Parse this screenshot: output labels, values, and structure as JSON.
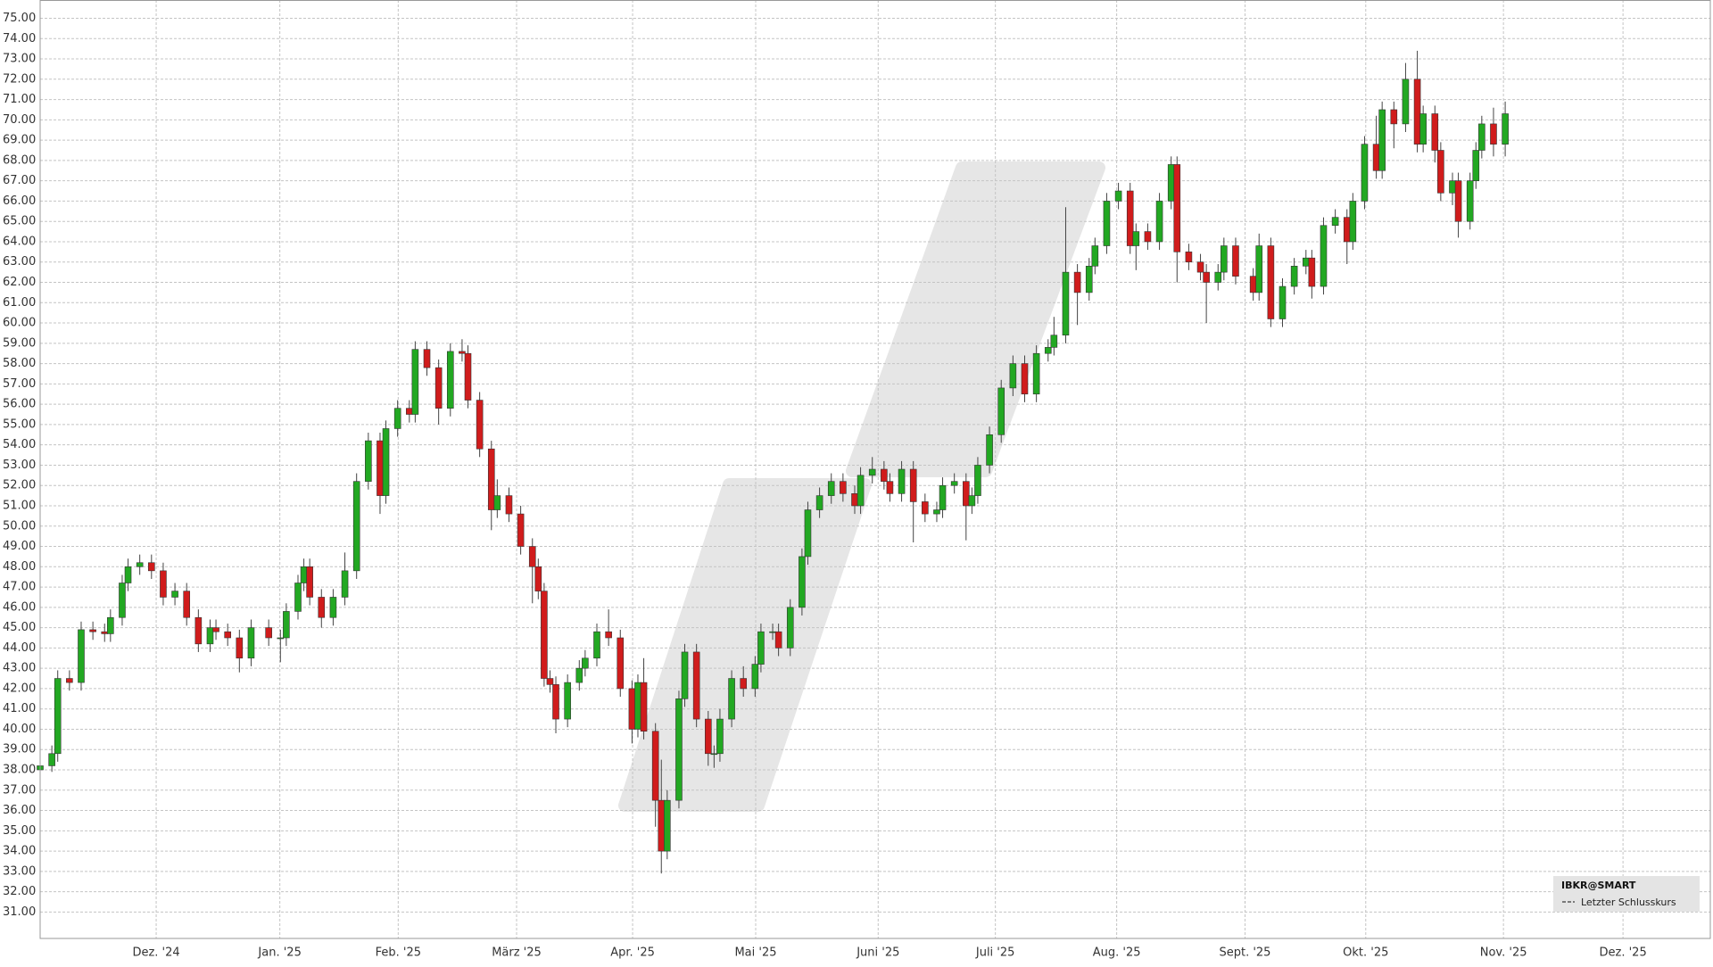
{
  "chart_data": {
    "type": "candlestick",
    "grid": true,
    "up_color": "#22a822",
    "down_color": "#d01c1c",
    "legend": {
      "title": "IBKR@SMART",
      "item": "Letzter Schlusskurs"
    },
    "xlim": [
      0,
      285
    ],
    "ylim": [
      29.7,
      75.9
    ],
    "xticks": [
      {
        "value": 19.8,
        "label": "Dez. '24"
      },
      {
        "value": 40.9,
        "label": "Jan. '25"
      },
      {
        "value": 61.1,
        "label": "Feb. '25"
      },
      {
        "value": 81.3,
        "label": "März '25"
      },
      {
        "value": 101.1,
        "label": "Apr. '25"
      },
      {
        "value": 122.1,
        "label": "Mai '25"
      },
      {
        "value": 143.0,
        "label": "Juni '25"
      },
      {
        "value": 163.0,
        "label": "Juli '25"
      },
      {
        "value": 183.7,
        "label": "Aug. '25"
      },
      {
        "value": 205.6,
        "label": "Sept. '25"
      },
      {
        "value": 226.2,
        "label": "Okt. '25"
      },
      {
        "value": 249.7,
        "label": "Nov. '25"
      },
      {
        "value": 270.1,
        "label": "Dez. '25"
      }
    ],
    "yticks": [
      {
        "value": 31,
        "label": "31.00"
      },
      {
        "value": 32,
        "label": "32.00"
      },
      {
        "value": 33,
        "label": "33.00"
      },
      {
        "value": 34,
        "label": "34.00"
      },
      {
        "value": 35,
        "label": "35.00"
      },
      {
        "value": 36,
        "label": "36.00"
      },
      {
        "value": 37,
        "label": "37.00"
      },
      {
        "value": 38,
        "label": "38.00"
      },
      {
        "value": 39,
        "label": "39.00"
      },
      {
        "value": 40,
        "label": "40.00"
      },
      {
        "value": 41,
        "label": "41.00"
      },
      {
        "value": 42,
        "label": "42.00"
      },
      {
        "value": 43,
        "label": "43.00"
      },
      {
        "value": 44,
        "label": "44.00"
      },
      {
        "value": 45,
        "label": "45.00"
      },
      {
        "value": 46,
        "label": "46.00"
      },
      {
        "value": 47,
        "label": "47.00"
      },
      {
        "value": 48,
        "label": "48.00"
      },
      {
        "value": 49,
        "label": "49.00"
      },
      {
        "value": 50,
        "label": "50.00"
      },
      {
        "value": 51,
        "label": "51.00"
      },
      {
        "value": 52,
        "label": "52.00"
      },
      {
        "value": 53,
        "label": "53.00"
      },
      {
        "value": 54,
        "label": "54.00"
      },
      {
        "value": 55,
        "label": "55.00"
      },
      {
        "value": 56,
        "label": "56.00"
      },
      {
        "value": 57,
        "label": "57.00"
      },
      {
        "value": 58,
        "label": "58.00"
      },
      {
        "value": 59,
        "label": "59.00"
      },
      {
        "value": 60,
        "label": "60.00"
      },
      {
        "value": 61,
        "label": "61.00"
      },
      {
        "value": 62,
        "label": "62.00"
      },
      {
        "value": 63,
        "label": "63.00"
      },
      {
        "value": 64,
        "label": "64.00"
      },
      {
        "value": 65,
        "label": "65.00"
      },
      {
        "value": 66,
        "label": "66.00"
      },
      {
        "value": 67,
        "label": "67.00"
      },
      {
        "value": 68,
        "label": "68.00"
      },
      {
        "value": 69,
        "label": "69.00"
      },
      {
        "value": 70,
        "label": "70.00"
      },
      {
        "value": 71,
        "label": "71.00"
      },
      {
        "value": 72,
        "label": "72.00"
      },
      {
        "value": 73,
        "label": "73.00"
      },
      {
        "value": 74,
        "label": "74.00"
      },
      {
        "value": 75,
        "label": "75.00"
      }
    ],
    "x": [
      0,
      2,
      3,
      5,
      7,
      9,
      11,
      12,
      14,
      15,
      17,
      19,
      21,
      23,
      25,
      27,
      29,
      30,
      32,
      34,
      36,
      39,
      41,
      42,
      44,
      45,
      46,
      48,
      50,
      52,
      54,
      56,
      58,
      59,
      61,
      63,
      64,
      66,
      68,
      70,
      72,
      73,
      75,
      77,
      78,
      80,
      82,
      84,
      85,
      86,
      87,
      88,
      90,
      92,
      93,
      95,
      97,
      99,
      101,
      102,
      103,
      105,
      106,
      107,
      109,
      110,
      112,
      114,
      115,
      116,
      118,
      120,
      122,
      123,
      125,
      126,
      128,
      130,
      131,
      133,
      135,
      137,
      139,
      140,
      142,
      144,
      145,
      147,
      149,
      151,
      153,
      154,
      156,
      158,
      159,
      160,
      162,
      164,
      166,
      168,
      170,
      172,
      173,
      175,
      177,
      179,
      180,
      182,
      184,
      186,
      187,
      189,
      191,
      193,
      194,
      196,
      198,
      199,
      201,
      202,
      204,
      207,
      208,
      210,
      212,
      214,
      216,
      217,
      219,
      221,
      223,
      224,
      226,
      228,
      229,
      231,
      233,
      235,
      236,
      238,
      239,
      241,
      242,
      244,
      245,
      246,
      248,
      250
    ],
    "open": [
      38.0,
      38.2,
      38.8,
      42.5,
      42.3,
      44.9,
      44.8,
      44.7,
      45.5,
      47.2,
      48.0,
      48.2,
      47.8,
      46.5,
      46.8,
      45.5,
      44.2,
      45.0,
      44.8,
      44.5,
      43.5,
      45.0,
      44.5,
      44.5,
      45.8,
      47.2,
      48.0,
      46.5,
      45.5,
      46.5,
      47.8,
      52.2,
      54.2,
      51.5,
      54.8,
      55.8,
      55.5,
      58.7,
      57.8,
      55.8,
      58.6,
      58.5,
      56.2,
      53.8,
      50.8,
      51.5,
      50.6,
      49.0,
      48.0,
      46.8,
      42.5,
      42.2,
      40.5,
      42.3,
      43.0,
      43.5,
      44.8,
      44.5,
      42.0,
      40.0,
      42.3,
      39.9,
      36.5,
      34.0,
      36.5,
      41.5,
      43.8,
      40.5,
      38.8,
      38.8,
      40.5,
      42.5,
      42.0,
      43.2,
      44.8,
      44.8,
      44.0,
      46.0,
      48.5,
      50.8,
      51.5,
      52.2,
      51.6,
      51.0,
      52.5,
      52.8,
      52.2,
      51.6,
      52.8,
      51.2,
      50.6,
      50.8,
      52.0,
      52.2,
      51.0,
      51.5,
      53.0,
      54.5,
      56.8,
      58.0,
      56.5,
      58.5,
      58.8,
      59.4,
      62.5,
      61.5,
      62.8,
      63.8,
      66.0,
      66.5,
      63.8,
      64.5,
      64.0,
      66.0,
      67.8,
      63.5,
      63.0,
      62.5,
      62.0,
      62.5,
      63.8,
      62.3,
      61.5,
      63.8,
      60.2,
      61.8,
      62.8,
      63.2,
      61.8,
      64.8,
      65.2,
      64.0,
      66.0,
      68.8,
      67.5,
      70.5,
      69.8,
      72.0,
      68.8,
      70.3,
      68.5,
      66.4,
      67.0,
      65.0,
      67.0,
      68.5,
      69.8,
      68.8
    ],
    "high": [
      38.6,
      39.2,
      42.9,
      42.9,
      45.3,
      45.3,
      45.2,
      45.9,
      47.6,
      48.4,
      48.6,
      48.6,
      48.2,
      47.2,
      47.2,
      45.9,
      45.4,
      45.4,
      45.2,
      44.9,
      45.4,
      45.4,
      44.9,
      46.2,
      47.6,
      48.4,
      48.4,
      46.9,
      46.9,
      48.7,
      52.6,
      54.6,
      54.6,
      55.2,
      56.2,
      56.2,
      59.1,
      59.1,
      58.2,
      59.0,
      59.2,
      58.9,
      56.6,
      54.2,
      52.3,
      51.9,
      51.0,
      49.4,
      48.4,
      47.2,
      42.9,
      42.6,
      42.7,
      43.4,
      43.9,
      45.2,
      45.9,
      44.9,
      42.4,
      42.7,
      43.5,
      40.3,
      38.5,
      37.0,
      41.9,
      44.2,
      44.2,
      40.9,
      39.2,
      41.0,
      42.9,
      43.1,
      43.6,
      45.2,
      45.2,
      45.2,
      46.4,
      48.9,
      51.2,
      51.9,
      52.6,
      52.6,
      52.0,
      52.9,
      53.4,
      53.2,
      52.6,
      53.2,
      53.2,
      51.6,
      51.2,
      52.4,
      52.6,
      52.6,
      51.9,
      53.4,
      54.9,
      57.2,
      58.4,
      58.4,
      58.9,
      59.2,
      60.3,
      65.7,
      62.9,
      63.2,
      64.2,
      66.4,
      66.9,
      66.9,
      64.9,
      64.9,
      66.4,
      68.2,
      68.2,
      63.9,
      63.4,
      62.9,
      62.9,
      64.2,
      64.2,
      62.7,
      64.4,
      64.2,
      62.2,
      63.2,
      63.6,
      63.6,
      65.2,
      65.6,
      65.6,
      66.4,
      69.2,
      70.2,
      70.9,
      70.9,
      72.8,
      73.4,
      70.7,
      70.7,
      68.9,
      67.4,
      67.4,
      67.4,
      68.9,
      70.2,
      70.6,
      70.9
    ],
    "low": [
      37.8,
      37.9,
      38.4,
      41.9,
      41.9,
      44.4,
      44.3,
      44.3,
      45.1,
      46.8,
      47.6,
      47.4,
      46.1,
      46.1,
      45.1,
      43.8,
      43.8,
      44.4,
      44.1,
      42.8,
      43.1,
      44.1,
      43.3,
      44.1,
      45.4,
      46.8,
      46.1,
      45.0,
      45.1,
      46.1,
      47.4,
      51.8,
      50.6,
      51.1,
      54.4,
      55.1,
      55.1,
      57.4,
      55.0,
      55.4,
      58.1,
      55.8,
      53.4,
      49.8,
      50.4,
      50.2,
      48.6,
      46.2,
      46.4,
      42.1,
      41.8,
      39.8,
      40.1,
      41.9,
      42.6,
      43.1,
      44.1,
      41.6,
      39.3,
      39.6,
      39.5,
      35.2,
      32.9,
      33.6,
      36.1,
      41.1,
      40.1,
      38.2,
      38.1,
      38.4,
      40.1,
      41.6,
      41.6,
      42.8,
      44.4,
      43.6,
      43.6,
      45.6,
      48.1,
      50.4,
      51.1,
      51.2,
      50.6,
      50.6,
      52.1,
      51.8,
      51.2,
      51.2,
      49.2,
      50.2,
      50.2,
      50.4,
      51.6,
      49.3,
      50.6,
      51.1,
      52.6,
      54.1,
      56.4,
      56.1,
      56.1,
      58.1,
      58.4,
      59.0,
      59.9,
      61.1,
      62.4,
      63.4,
      65.6,
      63.4,
      62.6,
      63.6,
      63.6,
      65.6,
      62.0,
      62.6,
      62.1,
      60.0,
      61.6,
      62.1,
      61.9,
      61.1,
      61.1,
      59.8,
      59.8,
      61.4,
      62.4,
      61.2,
      61.4,
      64.4,
      62.9,
      63.6,
      65.6,
      67.1,
      67.1,
      68.6,
      69.4,
      68.4,
      68.4,
      67.9,
      66.0,
      65.8,
      64.2,
      64.6,
      66.6,
      68.1,
      68.2,
      68.2
    ],
    "close": [
      38.2,
      38.8,
      42.5,
      42.3,
      44.9,
      44.8,
      44.7,
      45.5,
      47.2,
      48.0,
      48.2,
      47.8,
      46.5,
      46.8,
      45.5,
      44.2,
      45.0,
      44.8,
      44.5,
      43.5,
      45.0,
      44.5,
      44.5,
      45.8,
      47.2,
      48.0,
      46.5,
      45.5,
      46.5,
      47.8,
      52.2,
      54.2,
      51.5,
      54.8,
      55.8,
      55.5,
      58.7,
      57.8,
      55.8,
      58.6,
      58.5,
      56.2,
      53.8,
      50.8,
      51.5,
      50.6,
      49.0,
      48.0,
      46.8,
      42.5,
      42.2,
      40.5,
      42.3,
      43.0,
      43.5,
      44.8,
      44.5,
      42.0,
      40.0,
      42.3,
      39.9,
      36.5,
      34.0,
      36.5,
      41.5,
      43.8,
      40.5,
      38.8,
      38.8,
      40.5,
      42.5,
      42.0,
      43.2,
      44.8,
      44.8,
      44.0,
      46.0,
      48.5,
      50.8,
      51.5,
      52.2,
      51.6,
      51.0,
      52.5,
      52.8,
      52.2,
      51.6,
      52.8,
      51.2,
      50.6,
      50.8,
      52.0,
      52.2,
      51.0,
      51.5,
      53.0,
      54.5,
      56.8,
      58.0,
      56.5,
      58.5,
      58.8,
      59.4,
      62.5,
      61.5,
      62.8,
      63.8,
      66.0,
      66.5,
      63.8,
      64.5,
      64.0,
      66.0,
      67.8,
      63.5,
      63.0,
      62.5,
      62.0,
      62.5,
      63.8,
      62.3,
      61.5,
      63.8,
      60.2,
      61.8,
      62.8,
      63.2,
      61.8,
      64.8,
      65.2,
      64.0,
      66.0,
      68.8,
      67.5,
      70.5,
      69.8,
      72.0,
      68.8,
      70.3,
      68.5,
      66.4,
      67.0,
      65.0,
      67.0,
      68.5,
      69.8,
      68.8,
      70.3
    ]
  }
}
